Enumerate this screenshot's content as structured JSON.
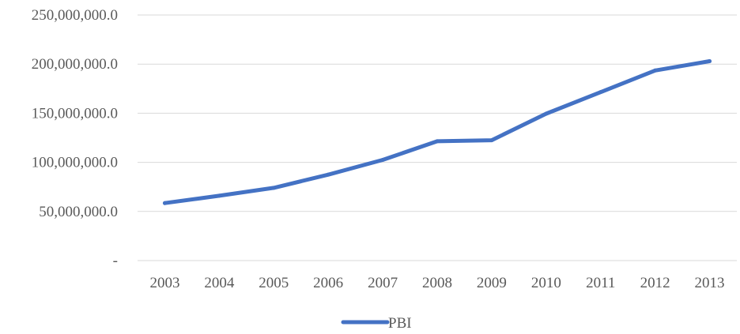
{
  "chart_data": {
    "type": "line",
    "title": "",
    "xlabel": "",
    "ylabel": "",
    "categories": [
      "2003",
      "2004",
      "2005",
      "2006",
      "2007",
      "2008",
      "2009",
      "2010",
      "2011",
      "2012",
      "2013"
    ],
    "series": [
      {
        "name": "PBI",
        "color": "#4472C4",
        "values": [
          58500000,
          66000000,
          74000000,
          87500000,
          102500000,
          121500000,
          122500000,
          149500000,
          171500000,
          193500000,
          203000000
        ]
      }
    ],
    "ylim": [
      0,
      250000000
    ],
    "y_ticks": [
      {
        "value": 0,
        "label": "-"
      },
      {
        "value": 50000000,
        "label": "50,000,000.0"
      },
      {
        "value": 100000000,
        "label": "100,000,000.0"
      },
      {
        "value": 150000000,
        "label": "150,000,000.0"
      },
      {
        "value": 200000000,
        "label": "200,000,000.0"
      },
      {
        "value": 250000000,
        "label": "250,000,000.0"
      }
    ],
    "grid": true,
    "gridline_color": "#D9D9D9",
    "legend_position": "bottom"
  }
}
